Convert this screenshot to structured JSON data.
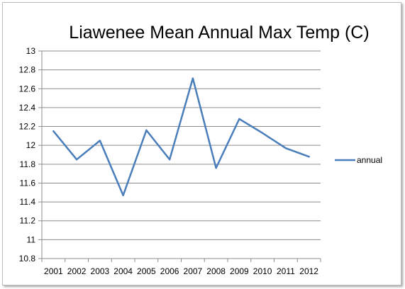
{
  "chart_data": {
    "type": "line",
    "title": "Liawenee Mean Annual Max Temp (C)",
    "xlabel": "",
    "ylabel": "",
    "categories": [
      "2001",
      "2002",
      "2003",
      "2004",
      "2005",
      "2006",
      "2007",
      "2008",
      "2009",
      "2010",
      "2011",
      "2012"
    ],
    "series": [
      {
        "name": "annual",
        "color": "#4a7ebb",
        "values": [
          12.15,
          11.85,
          12.05,
          11.47,
          12.16,
          11.85,
          12.71,
          11.76,
          12.28,
          12.13,
          11.97,
          11.88
        ]
      }
    ],
    "ylim": [
      10.8,
      13
    ],
    "ytick_labels": [
      "10.8",
      "11",
      "11.2",
      "11.4",
      "11.6",
      "11.8",
      "12",
      "12.2",
      "12.4",
      "12.6",
      "12.8",
      "13"
    ],
    "grid": true,
    "legend_position": "right"
  }
}
